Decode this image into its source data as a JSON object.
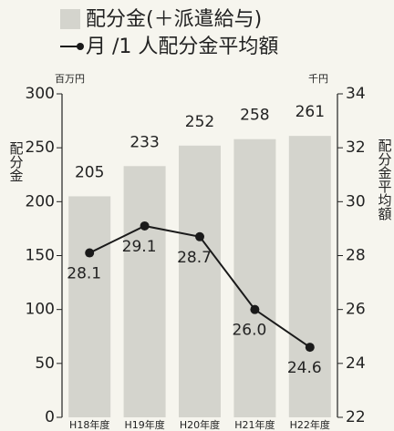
{
  "chart_data": {
    "type": "combo",
    "legend_labels": null,
    "y_unit": "百万円",
    "y2_unit": "千円",
    "ylabel": "配分金",
    "y2label": "配分金平均額",
    "categories": [
      "H18年度",
      "H19年度",
      "H20年度",
      "H21年度",
      "H22年度"
    ],
    "series": [
      {
        "name": "配分金(＋派遣給与)",
        "type": "bar",
        "color": "#d4d4cd",
        "values": [
          205,
          233,
          252,
          258,
          261
        ]
      },
      {
        "name": "月 /1 人配分金平均額",
        "type": "line",
        "axis": "y2",
        "color": "#1a1a1a",
        "values": [
          28.1,
          29.1,
          28.7,
          26.0,
          24.6
        ],
        "value_labels": [
          "28.1",
          "29.1",
          "28.7",
          "26.0",
          "24.6"
        ]
      }
    ],
    "ylim": [
      0,
      300
    ],
    "yticks": [
      0,
      50,
      100,
      150,
      200,
      250,
      300
    ],
    "y2lim": [
      22,
      34
    ],
    "y2ticks": [
      22,
      24,
      26,
      28,
      30,
      32,
      34
    ]
  }
}
